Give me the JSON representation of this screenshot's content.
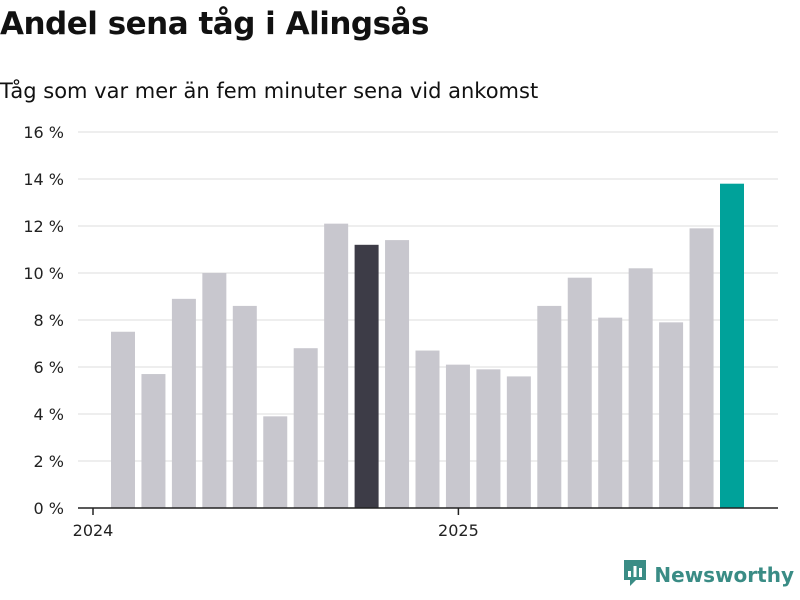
{
  "header": {
    "title": "Andel sena tåg i Alingsås",
    "subtitle": "Tåg som var mer än fem minuter sena vid ankomst"
  },
  "brand": {
    "name": "Newsworthy",
    "icon": "newsworthy-logo-icon",
    "color": "#3a8c85"
  },
  "colors": {
    "default_bar": "#c8c7ce",
    "highlight_dark": "#3d3c47",
    "highlight_latest": "#00a29a",
    "grid": "#dcdcdc",
    "axis": "#222222"
  },
  "chart_data": {
    "type": "bar",
    "x": [
      "2024-01",
      "2024-02",
      "2024-03",
      "2024-04",
      "2024-05",
      "2024-06",
      "2024-07",
      "2024-08",
      "2024-09",
      "2024-10",
      "2024-11",
      "2024-12",
      "2025-01",
      "2025-02",
      "2025-03",
      "2025-04",
      "2025-05",
      "2025-06",
      "2025-07",
      "2025-08",
      "2025-09"
    ],
    "values": [
      7.5,
      5.7,
      8.9,
      10.0,
      8.6,
      3.9,
      6.8,
      12.1,
      11.2,
      11.4,
      6.7,
      6.1,
      5.9,
      5.6,
      8.6,
      9.8,
      8.1,
      10.2,
      7.9,
      11.9,
      13.8
    ],
    "highlight": {
      "2024-09": "dark",
      "2025-09": "latest"
    },
    "ylim": [
      0,
      16
    ],
    "y_ticks": [
      0,
      2,
      4,
      6,
      8,
      10,
      12,
      14,
      16
    ],
    "y_tick_labels": [
      "0 %",
      "2 %",
      "4 %",
      "6 %",
      "8 %",
      "10 %",
      "12 %",
      "14 %",
      "16 %"
    ],
    "x_tick_labels": [
      {
        "at": "2024-01",
        "label": "2024"
      },
      {
        "at": "2025-01",
        "label": "2025"
      }
    ],
    "grid": true,
    "title": "Andel sena tåg i Alingsås",
    "xlabel": "",
    "ylabel": ""
  }
}
